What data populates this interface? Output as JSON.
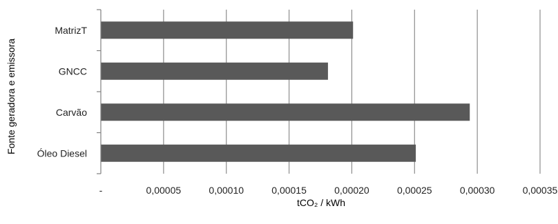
{
  "chart_data": {
    "type": "bar",
    "orientation": "horizontal",
    "categories": [
      "MatrizT",
      "GNCC",
      "Carvão",
      "Óleo Diesel"
    ],
    "values": [
      0.000201,
      0.000181,
      0.000294,
      0.000251
    ],
    "xlim": [
      0,
      0.00035
    ],
    "xticks": [
      0,
      5e-05,
      0.0001,
      0.00015,
      0.0002,
      0.00025,
      0.0003,
      0.00035
    ],
    "xtick_labels": [
      "-",
      "0,00005",
      "0,00010",
      "0,00015",
      "0,00020",
      "0,00025",
      "0,00030",
      "0,00035"
    ],
    "xlabel": "tCO₂ / kWh",
    "ylabel": "Fonte geradora e emissora",
    "title": "",
    "grid": "vertical",
    "legend": "none",
    "bar_color": "#595959",
    "grid_color": "#8c8c8c"
  }
}
